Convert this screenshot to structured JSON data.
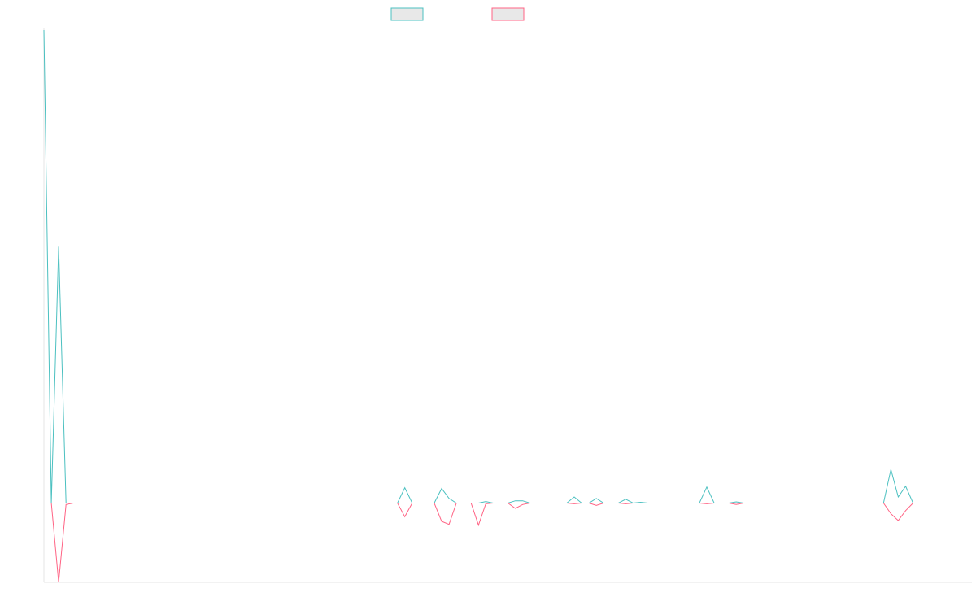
{
  "chart_data": {
    "type": "line",
    "title": "",
    "xlabel": "",
    "ylabel": "",
    "x_range": [
      0,
      126
    ],
    "ylim": [
      -0.52,
      3.1
    ],
    "grid": false,
    "legend_placement": "top-center",
    "series": [
      {
        "color": "#4bc0c0",
        "points": [
          [
            0,
            3.1
          ],
          [
            1,
            0
          ],
          [
            2,
            1.68
          ],
          [
            3,
            0
          ],
          [
            48,
            0
          ],
          [
            49,
            0.1
          ],
          [
            50,
            0
          ],
          [
            53,
            0
          ],
          [
            54,
            0.095
          ],
          [
            55,
            0.03
          ],
          [
            56,
            0
          ],
          [
            59,
            0
          ],
          [
            60,
            0.01
          ],
          [
            61,
            0
          ],
          [
            63,
            0
          ],
          [
            64,
            0.015
          ],
          [
            65,
            0.015
          ],
          [
            66,
            0
          ],
          [
            71,
            0
          ],
          [
            72,
            0.04
          ],
          [
            73,
            0
          ],
          [
            74,
            0
          ],
          [
            75,
            0.03
          ],
          [
            76,
            0
          ],
          [
            78,
            0
          ],
          [
            79,
            0.025
          ],
          [
            80,
            0
          ],
          [
            81,
            0.005
          ],
          [
            82,
            0
          ],
          [
            89,
            0
          ],
          [
            90,
            0.105
          ],
          [
            91,
            0
          ],
          [
            93,
            0
          ],
          [
            94,
            0.008
          ],
          [
            95,
            0
          ],
          [
            114,
            0
          ],
          [
            115,
            0.22
          ],
          [
            116,
            0.04
          ],
          [
            117,
            0.11
          ],
          [
            118,
            0
          ],
          [
            126,
            0
          ]
        ]
      },
      {
        "color": "#ff6384",
        "points": [
          [
            0,
            0
          ],
          [
            1,
            0
          ],
          [
            2,
            -0.52
          ],
          [
            3,
            -0.01
          ],
          [
            4,
            0
          ],
          [
            48,
            0
          ],
          [
            49,
            -0.09
          ],
          [
            50,
            0
          ],
          [
            53,
            0
          ],
          [
            54,
            -0.12
          ],
          [
            55,
            -0.14
          ],
          [
            56,
            0
          ],
          [
            58,
            0
          ],
          [
            59,
            -0.145
          ],
          [
            60,
            -0.005
          ],
          [
            61,
            0
          ],
          [
            63,
            0
          ],
          [
            64,
            -0.035
          ],
          [
            65,
            -0.01
          ],
          [
            66,
            0
          ],
          [
            71,
            0
          ],
          [
            72,
            -0.005
          ],
          [
            73,
            0
          ],
          [
            74,
            0
          ],
          [
            75,
            -0.015
          ],
          [
            76,
            0
          ],
          [
            78,
            0
          ],
          [
            79,
            -0.005
          ],
          [
            80,
            0
          ],
          [
            89,
            0
          ],
          [
            90,
            -0.005
          ],
          [
            91,
            0
          ],
          [
            93,
            0
          ],
          [
            94,
            -0.01
          ],
          [
            95,
            0
          ],
          [
            114,
            0
          ],
          [
            115,
            -0.07
          ],
          [
            116,
            -0.115
          ],
          [
            117,
            -0.05
          ],
          [
            118,
            0
          ],
          [
            126,
            0
          ]
        ]
      }
    ]
  }
}
